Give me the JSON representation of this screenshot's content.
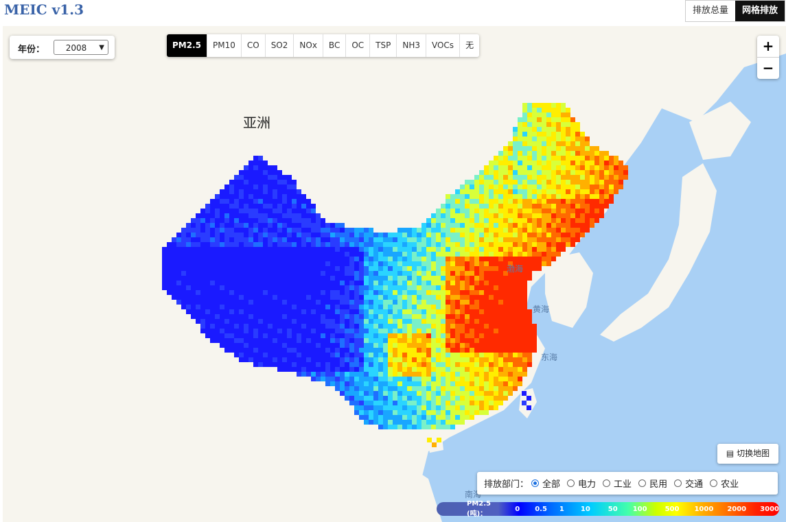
{
  "app": {
    "title": "MEIC v1.3"
  },
  "view_toggle": [
    {
      "label": "排放总量",
      "active": false
    },
    {
      "label": "网格排放",
      "active": true
    }
  ],
  "year": {
    "label": "年份：",
    "value": "2008"
  },
  "pollutants": [
    {
      "label": "PM2.5",
      "active": true
    },
    {
      "label": "PM10",
      "active": false
    },
    {
      "label": "CO",
      "active": false
    },
    {
      "label": "SO2",
      "active": false
    },
    {
      "label": "NOx",
      "active": false
    },
    {
      "label": "BC",
      "active": false
    },
    {
      "label": "OC",
      "active": false
    },
    {
      "label": "TSP",
      "active": false
    },
    {
      "label": "NH3",
      "active": false
    },
    {
      "label": "VOCs",
      "active": false
    },
    {
      "label": "无",
      "active": false
    }
  ],
  "zoom": {
    "in": "+",
    "out": "−"
  },
  "switch_map": {
    "label": "切换地图",
    "icon": "map-icon"
  },
  "sectors": {
    "label": "排放部门：",
    "options": [
      {
        "label": "全部",
        "selected": true
      },
      {
        "label": "电力",
        "selected": false
      },
      {
        "label": "工业",
        "selected": false
      },
      {
        "label": "民用",
        "selected": false
      },
      {
        "label": "交通",
        "selected": false
      },
      {
        "label": "农业",
        "selected": false
      }
    ]
  },
  "legend": {
    "title": "PM2.5 (吨)：",
    "ticks": [
      "0",
      "0.5",
      "1",
      "10",
      "50",
      "100",
      "500",
      "1000",
      "2000",
      "3000"
    ]
  },
  "map_labels": {
    "continent": "亚洲",
    "bohai": "渤海",
    "huanghai": "黄海",
    "donghai": "东海",
    "nanhai": "南海"
  },
  "colors": {
    "accent": "#3a63a8",
    "ocean": "#a9d0f5",
    "land": "#f7f5ee"
  }
}
